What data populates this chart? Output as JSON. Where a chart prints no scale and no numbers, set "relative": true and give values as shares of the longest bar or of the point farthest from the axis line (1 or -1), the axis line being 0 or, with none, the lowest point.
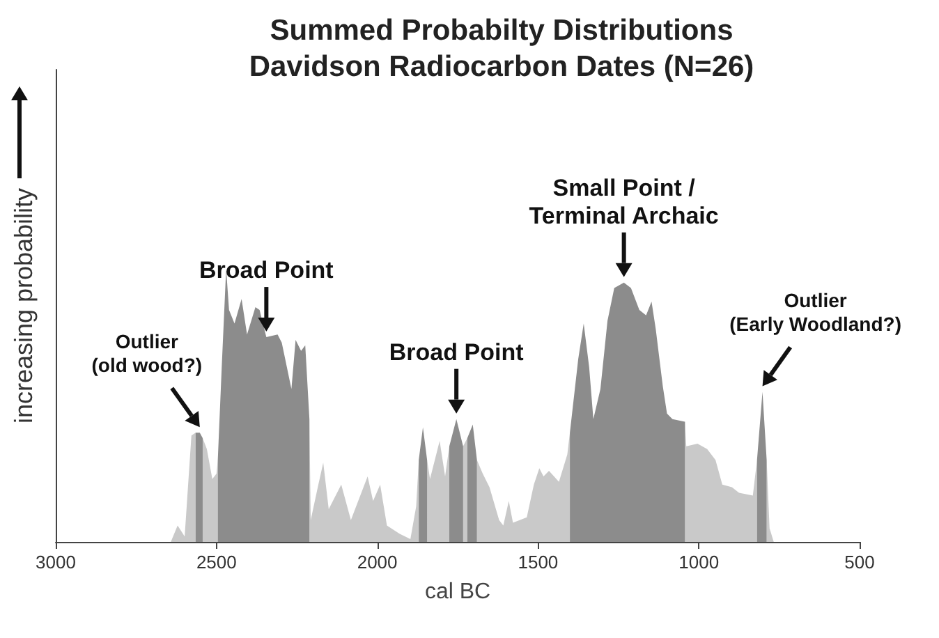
{
  "chart_data": {
    "type": "area",
    "title": "Summed Probabilty Distributions\nDavidson Radiocarbon Dates (N=26)",
    "xlabel": "cal BC",
    "ylabel": "increasing probability",
    "relative": true,
    "grid": false,
    "xlim": [
      3000,
      500
    ],
    "xticks": [
      3000,
      2500,
      2000,
      1500,
      1000,
      500
    ],
    "series": [
      {
        "color": "#c9c9c9",
        "x": [
          2642,
          2621,
          2599,
          2578,
          2565,
          2552,
          2543,
          2530,
          2513,
          2500,
          2496,
          2483,
          2470,
          2461,
          2444,
          2422,
          2405,
          2379,
          2366,
          2345,
          2310,
          2297,
          2267,
          2254,
          2237,
          2224,
          2211,
          2207,
          2185,
          2168,
          2151,
          2112,
          2082,
          2030,
          2013,
          1991,
          1970,
          1931,
          1897,
          1879,
          1871,
          1858,
          1845,
          1836,
          1806,
          1789,
          1776,
          1754,
          1733,
          1720,
          1703,
          1690,
          1672,
          1651,
          1621,
          1608,
          1591,
          1578,
          1535,
          1513,
          1496,
          1483,
          1466,
          1435,
          1409,
          1401,
          1375,
          1358,
          1341,
          1328,
          1306,
          1284,
          1263,
          1233,
          1211,
          1185,
          1164,
          1147,
          1134,
          1112,
          1099,
          1082,
          1043,
          1039,
          1004,
          974,
          948,
          927,
          897,
          875,
          832,
          819,
          802,
          789,
          780,
          767
        ],
        "values": [
          0,
          0.06,
          0.02,
          0.39,
          0.4,
          null,
          0.38,
          0.34,
          0.23,
          0.25,
          0.3,
          null,
          null,
          null,
          null,
          null,
          null,
          null,
          null,
          null,
          null,
          null,
          null,
          null,
          null,
          null,
          0.45,
          0.08,
          0.2,
          0.29,
          0.12,
          0.21,
          0.08,
          0.24,
          0.15,
          0.21,
          0.06,
          0.03,
          0.01,
          0.13,
          0.3,
          null,
          0.3,
          0.23,
          0.37,
          0.24,
          0.35,
          null,
          0.35,
          0.38,
          null,
          0.3,
          0.25,
          0.2,
          0.08,
          0.06,
          0.15,
          0.07,
          0.09,
          0.21,
          0.27,
          0.24,
          0.26,
          0.22,
          0.32,
          0.4,
          null,
          null,
          null,
          null,
          null,
          null,
          null,
          null,
          null,
          null,
          null,
          null,
          null,
          null,
          null,
          null,
          0.44,
          0.35,
          0.36,
          0.34,
          0.3,
          0.21,
          0.2,
          0.18,
          0.17,
          0.3,
          null,
          0.3,
          0.05,
          0
        ]
      },
      {
        "color": "#8c8c8c",
        "x": [
          2565,
          2552,
          2543,
          2530,
          2496,
          2483,
          2470,
          2461,
          2444,
          2422,
          2405,
          2379,
          2366,
          2345,
          2310,
          2297,
          2267,
          2254,
          2237,
          2224,
          2211,
          2185,
          1871,
          1858,
          1845,
          1836,
          1776,
          1754,
          1733,
          1725,
          1720,
          1703,
          1690,
          1672,
          1401,
          1375,
          1358,
          1341,
          1328,
          1306,
          1284,
          1263,
          1233,
          1211,
          1185,
          1164,
          1147,
          1134,
          1112,
          1099,
          1082,
          1043,
          1004,
          819,
          802,
          789
        ],
        "values": [
          0.4,
          0.4,
          0.38,
          null,
          0.3,
          0.66,
          1,
          0.85,
          0.8,
          0.89,
          0.76,
          0.86,
          0.85,
          0.75,
          0.76,
          0.73,
          0.56,
          0.74,
          0.7,
          0.72,
          0.45,
          null,
          0.3,
          0.42,
          0.3,
          null,
          0.35,
          0.45,
          0.35,
          null,
          0.38,
          0.43,
          0.3,
          null,
          0.4,
          0.67,
          0.8,
          0.64,
          0.45,
          0.56,
          0.81,
          0.93,
          0.95,
          0.93,
          0.85,
          0.83,
          0.88,
          0.78,
          0.57,
          0.47,
          0.45,
          0.44,
          null,
          0.3,
          0.55,
          0.3
        ]
      }
    ],
    "annotations": [
      {
        "text": "Outlier\n(old wood?)",
        "x": 2552,
        "y": 0.4
      },
      {
        "text": "Broad Point",
        "x": 2345,
        "y": 0.75
      },
      {
        "text": "Broad Point",
        "x": 1754,
        "y": 0.45
      },
      {
        "text": "Small Point /\nTerminal Archaic",
        "x": 1233,
        "y": 0.95
      },
      {
        "text": "Outlier\n(Early Woodland?)",
        "x": 802,
        "y": 0.55
      }
    ]
  }
}
